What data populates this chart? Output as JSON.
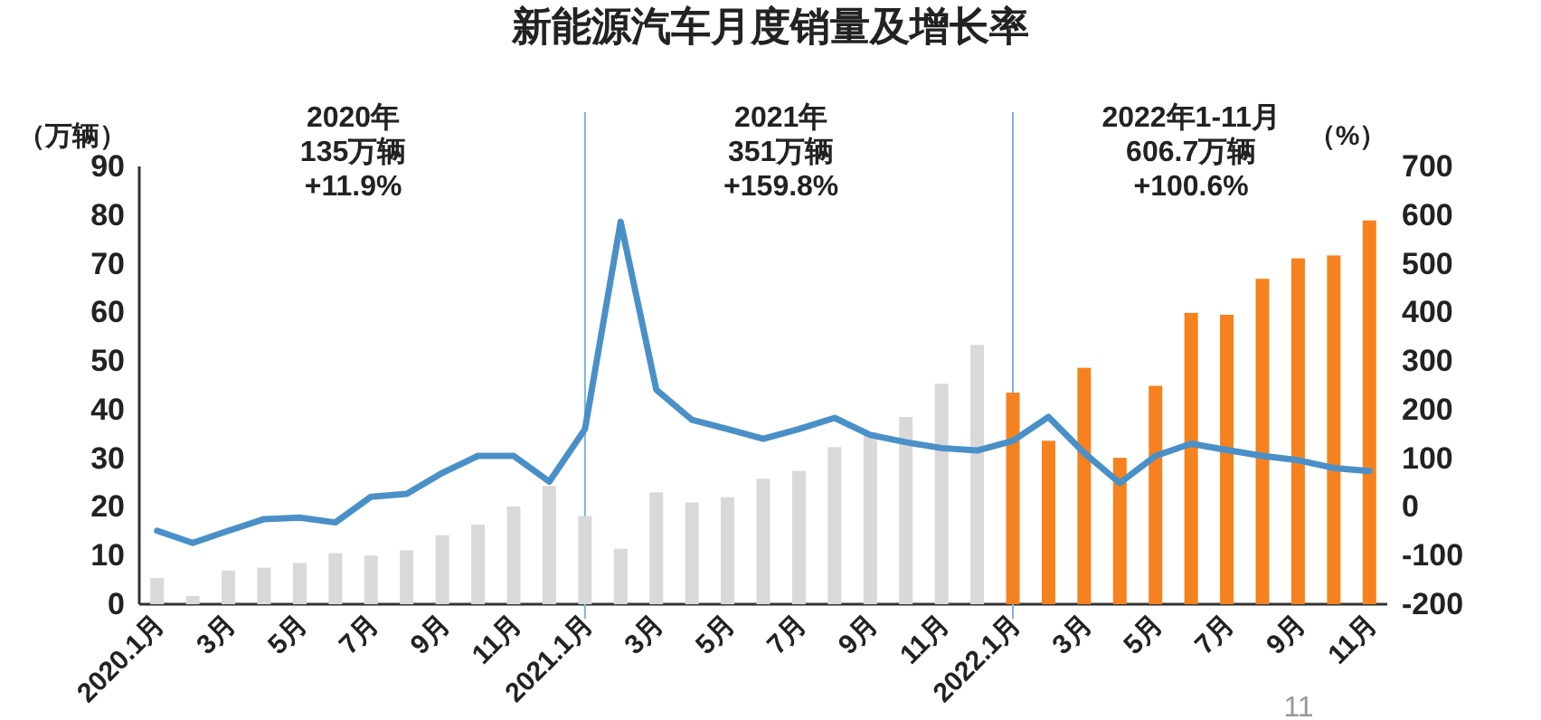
{
  "chart_data": {
    "type": "bar",
    "title": "新能源汽车月度销量及增长率",
    "ylabel": "（万辆）",
    "y2label": "（%）",
    "categories": [
      "2020.1月",
      null,
      "3月",
      null,
      "5月",
      null,
      "7月",
      null,
      "9月",
      null,
      "11月",
      null,
      "2021.1月",
      null,
      "3月",
      null,
      "5月",
      null,
      "7月",
      null,
      "9月",
      null,
      "11月",
      null,
      "2022.1月",
      null,
      "3月",
      null,
      "5月",
      null,
      "7月",
      null,
      "9月",
      null,
      "11月"
    ],
    "series": [
      {
        "colors": [
          "#d9d9d9",
          "#d9d9d9",
          "#d9d9d9",
          "#d9d9d9",
          "#d9d9d9",
          "#d9d9d9",
          "#d9d9d9",
          "#d9d9d9",
          "#d9d9d9",
          "#d9d9d9",
          "#d9d9d9",
          "#d9d9d9",
          "#d9d9d9",
          "#d9d9d9",
          "#d9d9d9",
          "#d9d9d9",
          "#d9d9d9",
          "#d9d9d9",
          "#d9d9d9",
          "#d9d9d9",
          "#d9d9d9",
          "#d9d9d9",
          "#d9d9d9",
          "#d9d9d9",
          "#f5821f",
          "#f5821f",
          "#f5821f",
          "#f5821f",
          "#f5821f",
          "#f5821f",
          "#f5821f",
          "#f5821f",
          "#f5821f",
          "#f5821f",
          "#f5821f"
        ],
        "values": [
          5.4,
          1.7,
          6.9,
          7.5,
          8.5,
          10.5,
          10,
          11.1,
          14.2,
          16.4,
          20.1,
          24.3,
          18.1,
          11.4,
          23,
          20.9,
          22,
          25.8,
          27.4,
          32.3,
          35.4,
          38.5,
          45.3,
          53.3,
          43.5,
          33.6,
          48.6,
          30.1,
          44.9,
          59.9,
          59.5,
          66.9,
          71.1,
          71.7,
          78.9
        ]
      },
      {
        "type": "line",
        "axis": "y2",
        "color": "#4a90c8",
        "values": [
          -49,
          -74,
          -49,
          -25,
          -22,
          -32,
          21,
          27,
          70,
          105,
          105,
          52,
          160,
          586,
          241,
          179,
          160,
          140,
          160,
          183,
          148,
          133,
          121,
          116,
          136,
          185,
          111,
          49,
          105,
          130,
          117,
          105,
          96,
          80,
          74
        ]
      }
    ],
    "ylim": [
      0,
      90
    ],
    "yticks": [
      0,
      10,
      20,
      30,
      40,
      50,
      60,
      70,
      80,
      90
    ],
    "y2lim": [
      -200,
      700
    ],
    "y2ticks": [
      -200,
      -100,
      0,
      100,
      200,
      300,
      400,
      500,
      600,
      700
    ],
    "ref_lines": [
      {
        "axis": "x",
        "value": "2021.1月",
        "color": "#7fb2d9"
      },
      {
        "axis": "x",
        "value": "2022.1月",
        "color": "#7fb2d9"
      }
    ],
    "annotations": [
      "2020年\n135万辆\n+11.9%",
      "2021年\n351万辆\n+159.8%",
      "2022年1-11月\n606.7万辆\n+100.6%",
      "11"
    ],
    "grid": false
  }
}
